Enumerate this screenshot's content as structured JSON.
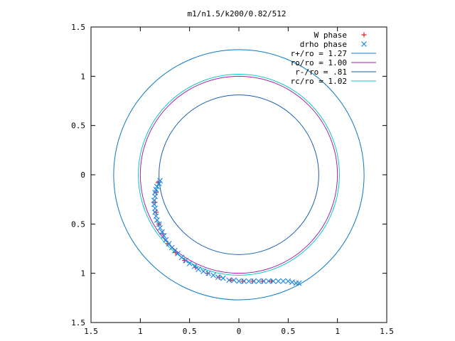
{
  "chart_data": {
    "type": "scatter",
    "title": "m1/n1.5/k200/0.82/512",
    "xlim": [
      -1.5,
      1.5
    ],
    "ylim": [
      -1.5,
      1.5
    ],
    "xticks": [
      {
        "v": -1.5,
        "label": "1.5"
      },
      {
        "v": -1,
        "label": "1"
      },
      {
        "v": -0.5,
        "label": "0.5"
      },
      {
        "v": 0,
        "label": "0"
      },
      {
        "v": 0.5,
        "label": "0.5"
      },
      {
        "v": 1,
        "label": "1"
      },
      {
        "v": 1.5,
        "label": "1.5"
      }
    ],
    "yticks": [
      {
        "v": 1.5,
        "label": "1.5"
      },
      {
        "v": 1,
        "label": "1"
      },
      {
        "v": 0.5,
        "label": "0.5"
      },
      {
        "v": 0,
        "label": "0"
      },
      {
        "v": -0.5,
        "label": "0.5"
      },
      {
        "v": -1,
        "label": "1"
      },
      {
        "v": -1.5,
        "label": "1.5"
      }
    ],
    "grid": false,
    "legend_position": "top-right",
    "circles": [
      {
        "name": "r+/ro = 1.27",
        "r": 1.27,
        "color": "#0a79c4"
      },
      {
        "name": "ro/ro = 1.00",
        "r": 1.0,
        "color": "#a020b0"
      },
      {
        "name": "r-/ro = .81",
        "r": 0.81,
        "color": "#1a5fb4"
      },
      {
        "name": "rc/ro = 1.02",
        "r": 1.02,
        "color": "#10c8c8"
      }
    ],
    "series": [
      {
        "name": "W phase",
        "marker": "+",
        "color": "#e02020",
        "points": [
          [
            -0.82,
            -0.08
          ],
          [
            -0.84,
            -0.18
          ],
          [
            -0.85,
            -0.28
          ],
          [
            -0.84,
            -0.38
          ],
          [
            -0.81,
            -0.5
          ],
          [
            -0.77,
            -0.6
          ],
          [
            -0.72,
            -0.7
          ],
          [
            -0.64,
            -0.79
          ],
          [
            -0.55,
            -0.87
          ],
          [
            -0.44,
            -0.94
          ],
          [
            -0.32,
            -1.0
          ],
          [
            -0.2,
            -1.04
          ],
          [
            -0.08,
            -1.07
          ],
          [
            0.04,
            -1.08
          ],
          [
            0.14,
            -1.08
          ],
          [
            0.24,
            -1.08
          ],
          [
            0.33,
            -1.08
          ]
        ]
      },
      {
        "name": "drho phase",
        "marker": "x",
        "color": "#1e8ae6",
        "points": [
          [
            -0.8,
            -0.06
          ],
          [
            -0.81,
            -0.09
          ],
          [
            -0.83,
            -0.12
          ],
          [
            -0.84,
            -0.15
          ],
          [
            -0.85,
            -0.18
          ],
          [
            -0.85,
            -0.22
          ],
          [
            -0.86,
            -0.26
          ],
          [
            -0.86,
            -0.3
          ],
          [
            -0.85,
            -0.34
          ],
          [
            -0.85,
            -0.38
          ],
          [
            -0.84,
            -0.42
          ],
          [
            -0.83,
            -0.46
          ],
          [
            -0.81,
            -0.5
          ],
          [
            -0.8,
            -0.54
          ],
          [
            -0.78,
            -0.58
          ],
          [
            -0.76,
            -0.62
          ],
          [
            -0.74,
            -0.66
          ],
          [
            -0.71,
            -0.7
          ],
          [
            -0.68,
            -0.74
          ],
          [
            -0.65,
            -0.77
          ],
          [
            -0.62,
            -0.8
          ],
          [
            -0.58,
            -0.84
          ],
          [
            -0.54,
            -0.87
          ],
          [
            -0.5,
            -0.9
          ],
          [
            -0.45,
            -0.93
          ],
          [
            -0.41,
            -0.96
          ],
          [
            -0.36,
            -0.98
          ],
          [
            -0.31,
            -1.0
          ],
          [
            -0.26,
            -1.02
          ],
          [
            -0.21,
            -1.04
          ],
          [
            -0.16,
            -1.05
          ],
          [
            -0.1,
            -1.07
          ],
          [
            -0.05,
            -1.07
          ],
          [
            0.0,
            -1.08
          ],
          [
            0.05,
            -1.08
          ],
          [
            0.1,
            -1.08
          ],
          [
            0.15,
            -1.08
          ],
          [
            0.2,
            -1.08
          ],
          [
            0.25,
            -1.08
          ],
          [
            0.3,
            -1.08
          ],
          [
            0.35,
            -1.08
          ],
          [
            0.4,
            -1.08
          ],
          [
            0.45,
            -1.08
          ],
          [
            0.5,
            -1.08
          ],
          [
            0.54,
            -1.09
          ],
          [
            0.58,
            -1.1
          ],
          [
            0.61,
            -1.1
          ]
        ]
      }
    ]
  }
}
